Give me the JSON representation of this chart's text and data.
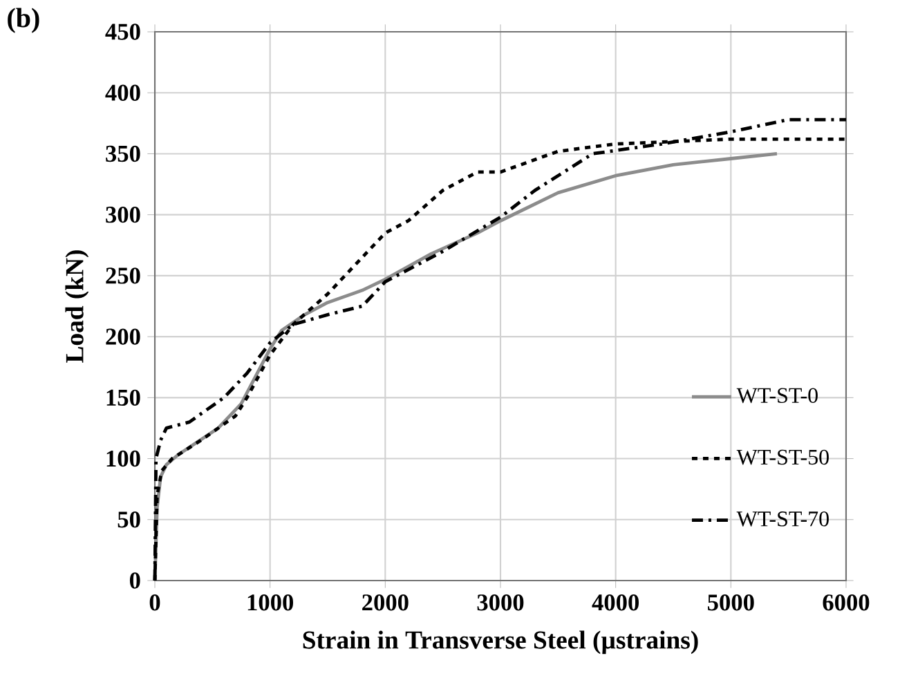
{
  "chart_data": {
    "type": "line",
    "xlabel": "Strain in Transverse Steel (µstrains)",
    "ylabel": "Load (kN)",
    "annotations": [
      "(b)"
    ],
    "xlim": [
      0,
      6000
    ],
    "xticks": [
      0,
      1000,
      2000,
      3000,
      4000,
      5000,
      6000
    ],
    "ylim": [
      0,
      450
    ],
    "yticks": [
      0,
      50,
      100,
      150,
      200,
      250,
      300,
      350,
      400,
      450
    ],
    "grid": true,
    "legend": "right",
    "marker": "none",
    "series": [
      {
        "name": "WT-ST-0",
        "color": "#8c8c8c",
        "line_style": "solid",
        "x": [
          0,
          20,
          50,
          100,
          200,
          550,
          750,
          1000,
          1100,
          1300,
          1500,
          1800,
          2000,
          2400,
          2800,
          3000,
          3500,
          4000,
          4500,
          5000,
          5400
        ],
        "values": [
          0,
          60,
          85,
          95,
          103,
          125,
          145,
          190,
          205,
          218,
          228,
          238,
          247,
          268,
          285,
          295,
          318,
          332,
          341,
          346,
          350
        ]
      },
      {
        "name": "WT-ST-50",
        "color": "#000000",
        "line_style": "dashed",
        "x": [
          0,
          20,
          60,
          150,
          400,
          700,
          800,
          1000,
          1200,
          1500,
          1800,
          2000,
          2200,
          2500,
          2800,
          3000,
          3500,
          4000,
          5000,
          6000
        ],
        "values": [
          0,
          70,
          90,
          100,
          115,
          135,
          150,
          185,
          210,
          235,
          265,
          285,
          295,
          320,
          335,
          335,
          352,
          358,
          362,
          362
        ]
      },
      {
        "name": "WT-ST-70",
        "color": "#000000",
        "line_style": "dashdot",
        "x": [
          0,
          10,
          50,
          100,
          300,
          600,
          800,
          1000,
          1200,
          1500,
          1800,
          2000,
          2500,
          3000,
          3300,
          3800,
          4400,
          5000,
          5500,
          6000
        ],
        "values": [
          0,
          100,
          115,
          125,
          130,
          150,
          170,
          195,
          210,
          218,
          225,
          245,
          270,
          298,
          320,
          350,
          358,
          368,
          378,
          378
        ]
      }
    ]
  }
}
